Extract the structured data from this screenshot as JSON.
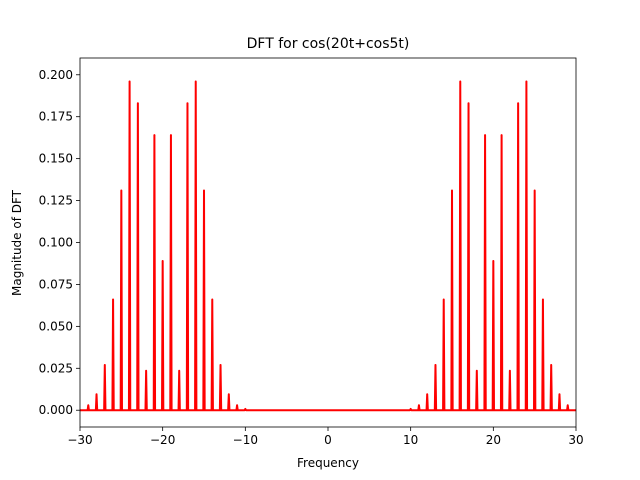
{
  "chart_data": {
    "type": "line",
    "title": "DFT for cos(20t+cos5t)",
    "xlabel": "Frequency",
    "ylabel": "Magnitude of DFT",
    "xlim": [
      -30,
      30
    ],
    "ylim": [
      -0.01,
      0.21
    ],
    "xticks": [
      -30,
      -20,
      -10,
      0,
      10,
      20,
      30
    ],
    "xtick_labels": [
      "−30",
      "−20",
      "−10",
      "0",
      "10",
      "20",
      "30"
    ],
    "yticks": [
      0.0,
      0.025,
      0.05,
      0.075,
      0.1,
      0.125,
      0.15,
      0.175,
      0.2
    ],
    "ytick_labels": [
      "0.000",
      "0.025",
      "0.050",
      "0.075",
      "0.100",
      "0.125",
      "0.150",
      "0.175",
      "0.200"
    ],
    "grid": false,
    "legend": "none",
    "line_color": "#ff0000",
    "peak_width": 0.16,
    "series": [
      {
        "x": [
          -29,
          -28,
          -27,
          -26,
          -25,
          -24,
          -23,
          -22,
          -21,
          -20,
          -19,
          -18,
          -17,
          -16,
          -15,
          -14,
          -13,
          -12,
          -11,
          -10,
          10,
          11,
          12,
          13,
          14,
          15,
          16,
          17,
          18,
          19,
          20,
          21,
          22,
          23,
          24,
          25,
          26,
          27,
          28,
          29
        ],
        "y": [
          0.003,
          0.0095,
          0.027,
          0.066,
          0.131,
          0.196,
          0.183,
          0.0235,
          0.164,
          0.089,
          0.164,
          0.0235,
          0.183,
          0.196,
          0.131,
          0.066,
          0.027,
          0.0095,
          0.003,
          0.0008,
          0.0008,
          0.003,
          0.0095,
          0.027,
          0.066,
          0.131,
          0.196,
          0.183,
          0.0235,
          0.164,
          0.089,
          0.164,
          0.0235,
          0.183,
          0.196,
          0.131,
          0.066,
          0.027,
          0.0095,
          0.003
        ]
      }
    ]
  }
}
